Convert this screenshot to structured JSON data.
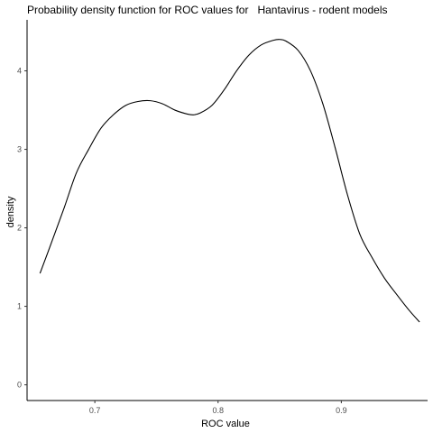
{
  "chart_data": {
    "type": "line",
    "title": "Probability density function for ROC values for   Hantavirus - rodent models",
    "xlabel": "ROC value",
    "ylabel": "density",
    "xlim": [
      0.645,
      0.97
    ],
    "ylim": [
      -0.2,
      4.65
    ],
    "x_ticks": [
      0.7,
      0.8,
      0.9
    ],
    "y_ticks": [
      0,
      1,
      2,
      3,
      4
    ],
    "x_tick_labels": [
      "0.7",
      "0.8",
      "0.9"
    ],
    "y_tick_labels": [
      "0",
      "1",
      "2",
      "3",
      "4"
    ],
    "grid": false,
    "legend": "none",
    "series": [
      {
        "x": [
          0.6555,
          0.665,
          0.675,
          0.685,
          0.695,
          0.705,
          0.715,
          0.725,
          0.735,
          0.745,
          0.755,
          0.765,
          0.775,
          0.78,
          0.785,
          0.795,
          0.805,
          0.815,
          0.825,
          0.835,
          0.845,
          0.85,
          0.855,
          0.865,
          0.875,
          0.885,
          0.895,
          0.905,
          0.915,
          0.925,
          0.935,
          0.945,
          0.955,
          0.9635
        ],
        "y": [
          1.42,
          1.82,
          2.25,
          2.7,
          3.0,
          3.27,
          3.44,
          3.56,
          3.61,
          3.62,
          3.58,
          3.5,
          3.45,
          3.44,
          3.46,
          3.56,
          3.76,
          4.0,
          4.2,
          4.33,
          4.39,
          4.4,
          4.38,
          4.26,
          4.0,
          3.58,
          3.02,
          2.42,
          1.92,
          1.62,
          1.36,
          1.15,
          0.95,
          0.8
        ]
      }
    ]
  }
}
